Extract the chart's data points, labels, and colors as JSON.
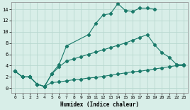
{
  "xlabel": "Humidex (Indice chaleur)",
  "bg_color": "#d8eee8",
  "grid_color": "#b8d8d0",
  "line_color": "#1a7a6a",
  "xlim": [
    -0.5,
    23.5
  ],
  "ylim": [
    -0.8,
    15.2
  ],
  "yticks": [
    0,
    2,
    4,
    6,
    8,
    10,
    12,
    14
  ],
  "xticks": [
    0,
    1,
    2,
    3,
    4,
    5,
    6,
    7,
    8,
    9,
    10,
    11,
    12,
    13,
    14,
    15,
    16,
    17,
    18,
    19,
    20,
    21,
    22,
    23
  ],
  "series": [
    {
      "x": [
        0,
        1,
        2,
        3,
        4,
        5,
        6,
        7,
        10,
        11,
        12,
        13,
        14,
        15,
        16,
        17,
        18,
        19
      ],
      "y": [
        3,
        2,
        2,
        0.7,
        0.3,
        2.6,
        4.2,
        7.5,
        9.5,
        11.5,
        13.0,
        13.2,
        15.0,
        13.8,
        13.6,
        14.2,
        14.2,
        14.0
      ]
    },
    {
      "x": [
        0,
        1,
        2,
        3,
        4,
        5,
        6,
        7,
        8,
        9,
        10,
        11,
        12,
        13,
        14,
        15,
        16,
        17,
        18,
        19,
        20,
        21,
        22,
        23
      ],
      "y": [
        3,
        2,
        2,
        0.7,
        0.3,
        2.5,
        3.8,
        4.8,
        5.2,
        5.6,
        6.0,
        6.4,
        6.8,
        7.2,
        7.6,
        8.0,
        8.5,
        9.0,
        9.5,
        7.7,
        6.3,
        5.5,
        4.2,
        4.2
      ]
    },
    {
      "x": [
        0,
        1,
        2,
        3,
        4,
        5,
        6,
        7,
        8,
        9,
        10,
        11,
        12,
        13,
        14,
        15,
        16,
        17,
        18,
        19,
        20,
        21,
        22,
        23
      ],
      "y": [
        3,
        2,
        2,
        0.7,
        0.3,
        1.0,
        1.1,
        1.3,
        1.5,
        1.6,
        1.8,
        1.9,
        2.1,
        2.3,
        2.5,
        2.7,
        2.9,
        3.0,
        3.2,
        3.4,
        3.6,
        3.8,
        4.0,
        4.0
      ]
    }
  ]
}
